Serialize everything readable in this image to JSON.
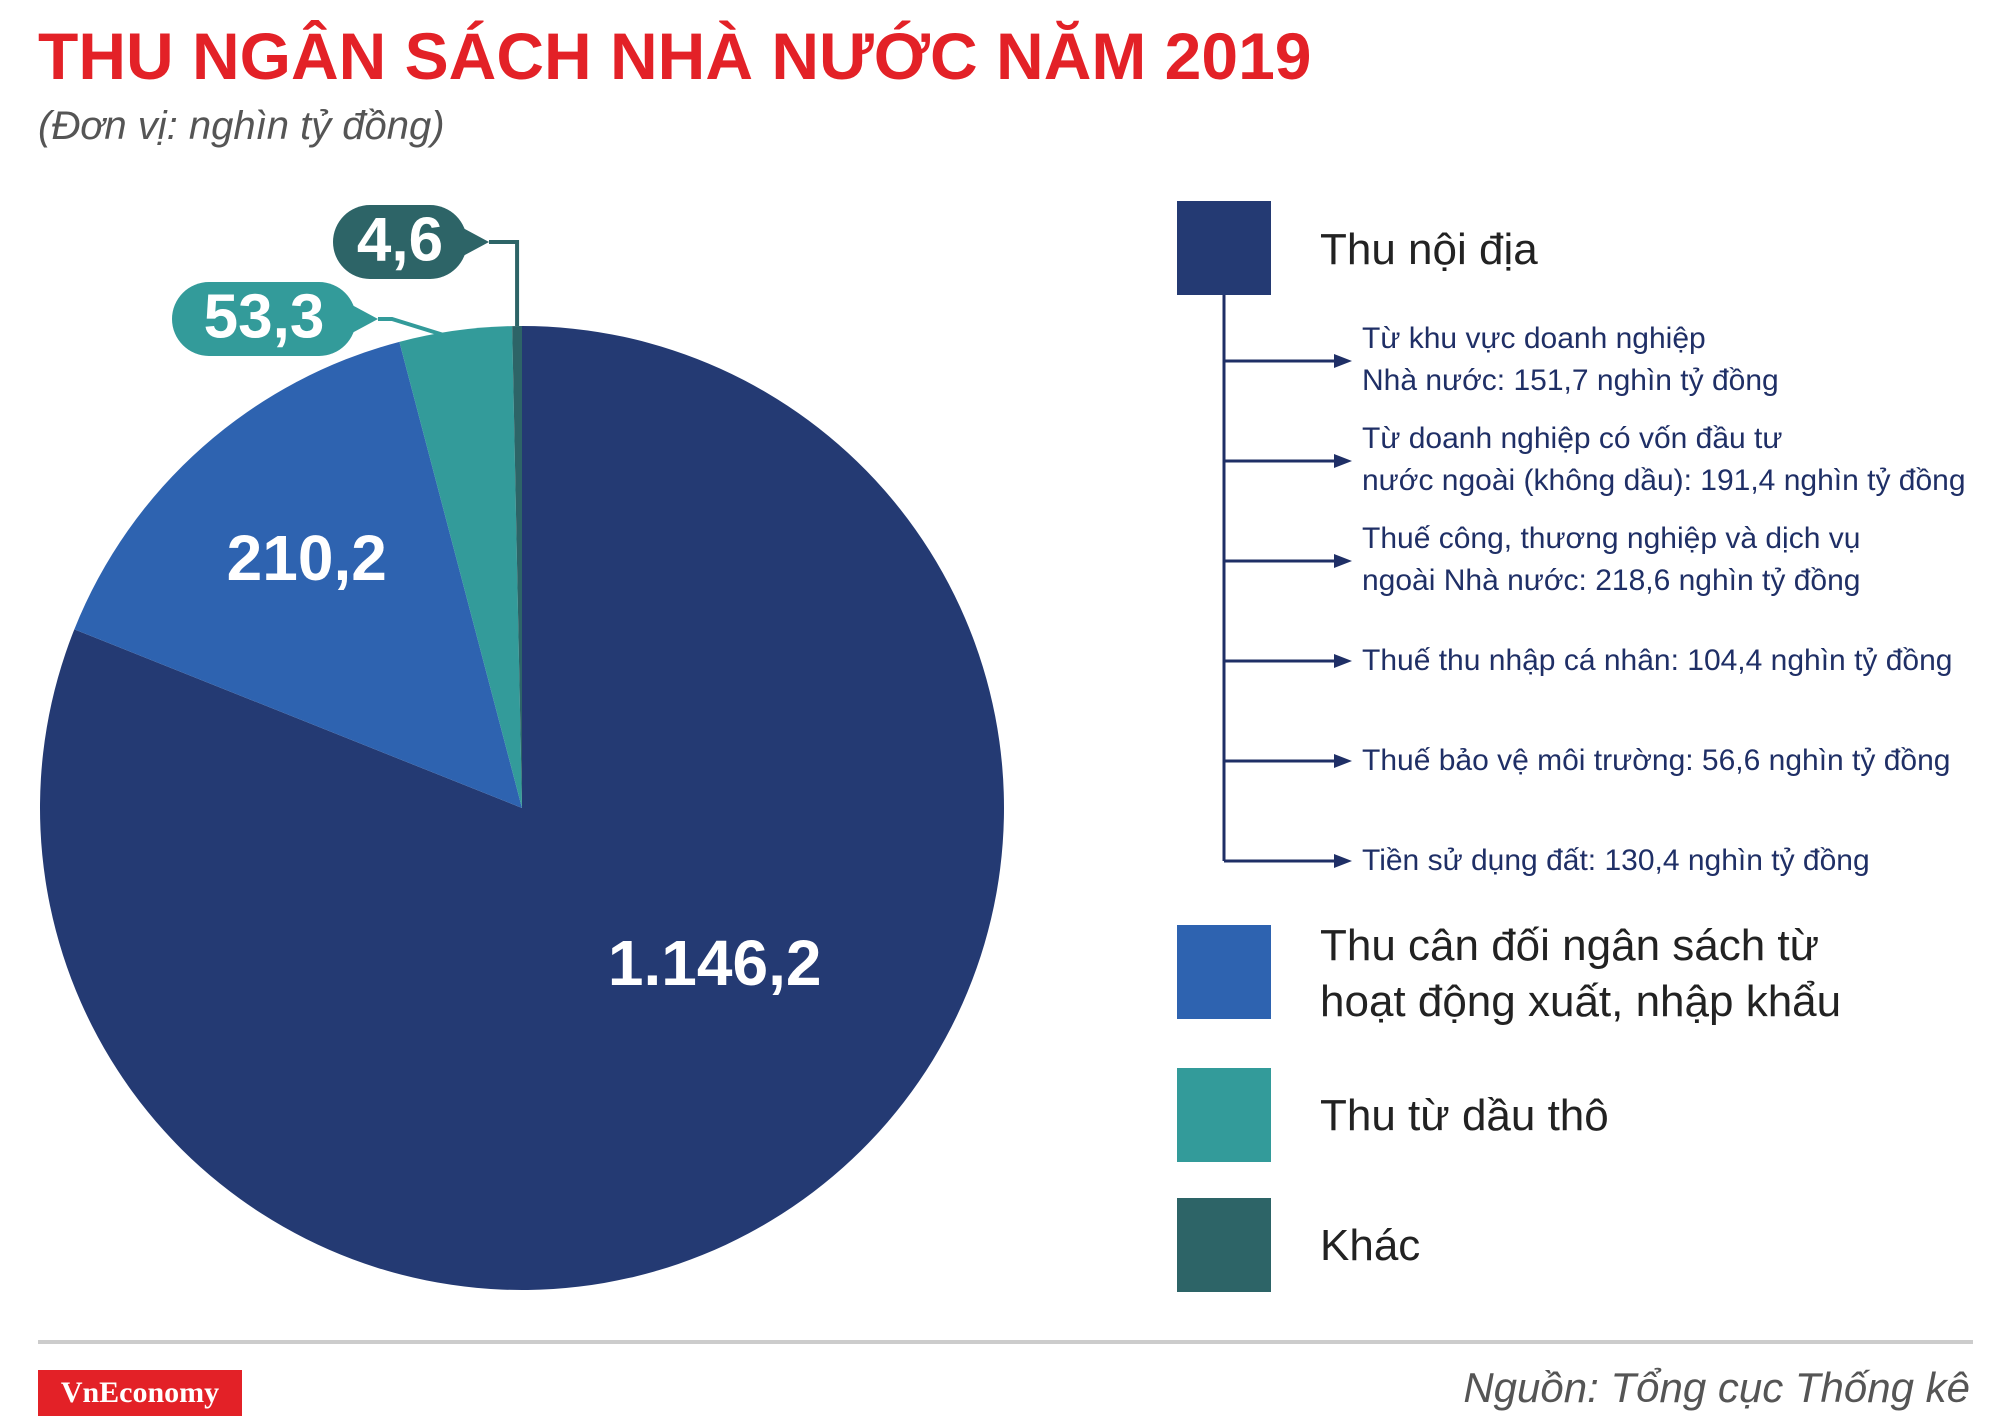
{
  "title": "THU NGÂN SÁCH NHÀ NƯỚC NĂM 2019",
  "subtitle": "(Đơn vị: nghìn tỷ đồng)",
  "chart_data": {
    "type": "pie",
    "title": "THU NGÂN SÁCH NHÀ NƯỚC NĂM 2019",
    "unit": "nghìn tỷ đồng",
    "slices": [
      {
        "label": "Thu nội địa",
        "value": 1146.2,
        "display": "1.146,2",
        "color": "#243a73"
      },
      {
        "label": "Thu cân đối ngân sách từ hoạt động xuất, nhập khẩu",
        "value": 210.2,
        "display": "210,2",
        "color": "#2e63b0"
      },
      {
        "label": "Thu từ dầu thô",
        "value": 53.3,
        "display": "53,3",
        "color": "#339b9a"
      },
      {
        "label": "Khác",
        "value": 4.6,
        "display": "4,6",
        "color": "#2d6467"
      }
    ],
    "legend_placement": "right"
  },
  "legend": {
    "items": [
      {
        "label_lines": [
          "Thu nội địa"
        ],
        "color": "#243a73"
      },
      {
        "label_lines": [
          "Thu cân đối ngân sách từ",
          "hoạt động xuất, nhập khẩu"
        ],
        "color": "#2e63b0"
      },
      {
        "label_lines": [
          "Thu từ dầu thô"
        ],
        "color": "#339b9a"
      },
      {
        "label_lines": [
          "Khác"
        ],
        "color": "#2d6467"
      }
    ]
  },
  "breakdown": {
    "items": [
      {
        "lines": [
          "Từ khu vực doanh nghiệp",
          "Nhà nước: 151,7 nghìn tỷ đồng"
        ]
      },
      {
        "lines": [
          "Từ doanh nghiệp có vốn đầu tư",
          "nước ngoài (không dầu): 191,4 nghìn tỷ đồng"
        ]
      },
      {
        "lines": [
          "Thuế công, thương nghiệp và dịch vụ",
          "ngoài Nhà nước: 218,6 nghìn tỷ đồng"
        ]
      },
      {
        "lines": [
          "Thuế thu nhập cá nhân: 104,4 nghìn tỷ đồng"
        ]
      },
      {
        "lines": [
          "Thuế bảo vệ môi trường: 56,6 nghìn tỷ đồng"
        ]
      },
      {
        "lines": [
          "Tiền sử dụng đất: 130,4 nghìn tỷ đồng"
        ]
      }
    ]
  },
  "footer": {
    "brand": "VnEconomy",
    "source": "Nguồn: Tổng cục Thống kê"
  }
}
